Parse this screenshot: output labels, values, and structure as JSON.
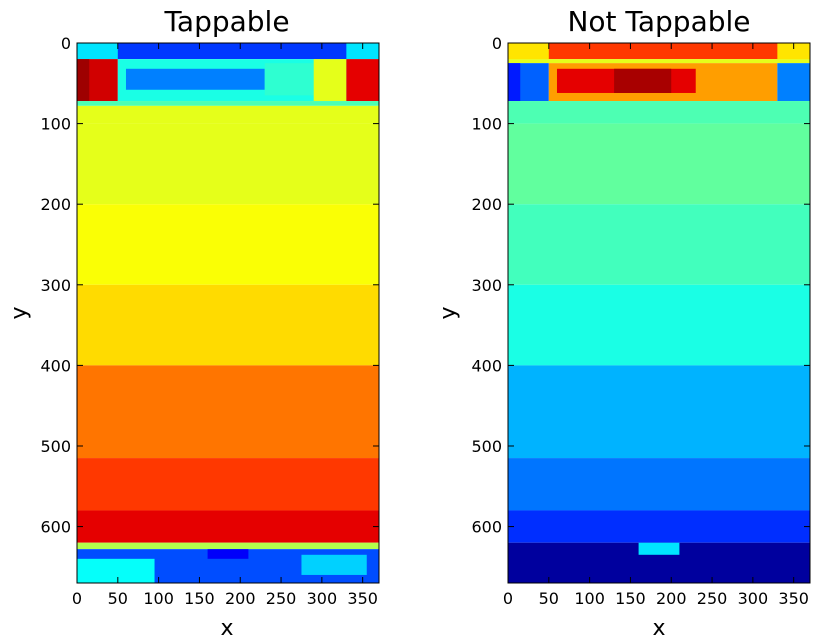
{
  "figure": {
    "panels": [
      {
        "title": "Tappable",
        "xlabel": "x",
        "ylabel": "y"
      },
      {
        "title": "Not Tappable",
        "xlabel": "x",
        "ylabel": "y"
      }
    ]
  },
  "chart_data": [
    {
      "type": "heatmap",
      "title": "Tappable",
      "xlabel": "x",
      "ylabel": "y",
      "xlim": [
        0,
        370
      ],
      "ylim": [
        670,
        0
      ],
      "xticks": [
        0,
        50,
        100,
        150,
        200,
        250,
        300,
        350
      ],
      "yticks": [
        0,
        100,
        200,
        300,
        400,
        500,
        600
      ],
      "colormap": "jet",
      "value_range": [
        0,
        1
      ],
      "regions": [
        {
          "x0": 0,
          "x1": 370,
          "y0": 0,
          "y1": 20,
          "value": 0.18
        },
        {
          "x0": 0,
          "x1": 50,
          "y0": 0,
          "y1": 20,
          "value": 0.35
        },
        {
          "x0": 330,
          "x1": 370,
          "y0": 0,
          "y1": 20,
          "value": 0.35
        },
        {
          "x0": 0,
          "x1": 50,
          "y0": 20,
          "y1": 72,
          "value": 0.92
        },
        {
          "x0": 0,
          "x1": 15,
          "y0": 20,
          "y1": 72,
          "value": 0.97
        },
        {
          "x0": 50,
          "x1": 330,
          "y0": 20,
          "y1": 72,
          "value": 0.4
        },
        {
          "x0": 60,
          "x1": 230,
          "y0": 32,
          "y1": 58,
          "value": 0.25
        },
        {
          "x0": 230,
          "x1": 290,
          "y0": 25,
          "y1": 65,
          "value": 0.42
        },
        {
          "x0": 290,
          "x1": 330,
          "y0": 20,
          "y1": 72,
          "value": 0.6
        },
        {
          "x0": 330,
          "x1": 370,
          "y0": 20,
          "y1": 72,
          "value": 0.9
        },
        {
          "x0": 0,
          "x1": 370,
          "y0": 72,
          "y1": 78,
          "value": 0.45
        },
        {
          "x0": 0,
          "x1": 370,
          "y0": 78,
          "y1": 100,
          "value": 0.6
        },
        {
          "x0": 0,
          "x1": 370,
          "y0": 100,
          "y1": 200,
          "value": 0.6
        },
        {
          "x0": 0,
          "x1": 370,
          "y0": 200,
          "y1": 300,
          "value": 0.62
        },
        {
          "x0": 0,
          "x1": 370,
          "y0": 300,
          "y1": 400,
          "value": 0.66
        },
        {
          "x0": 0,
          "x1": 370,
          "y0": 400,
          "y1": 515,
          "value": 0.76
        },
        {
          "x0": 0,
          "x1": 370,
          "y0": 515,
          "y1": 580,
          "value": 0.82
        },
        {
          "x0": 0,
          "x1": 370,
          "y0": 580,
          "y1": 620,
          "value": 0.9
        },
        {
          "x0": 0,
          "x1": 370,
          "y0": 620,
          "y1": 628,
          "value": 0.55
        },
        {
          "x0": 0,
          "x1": 370,
          "y0": 628,
          "y1": 670,
          "value": 0.2
        },
        {
          "x0": 0,
          "x1": 95,
          "y0": 640,
          "y1": 670,
          "value": 0.38
        },
        {
          "x0": 275,
          "x1": 355,
          "y0": 635,
          "y1": 660,
          "value": 0.33
        },
        {
          "x0": 160,
          "x1": 210,
          "y0": 628,
          "y1": 640,
          "value": 0.12
        }
      ]
    },
    {
      "type": "heatmap",
      "title": "Not Tappable",
      "xlabel": "x",
      "ylabel": "y",
      "xlim": [
        0,
        370
      ],
      "ylim": [
        670,
        0
      ],
      "xticks": [
        0,
        50,
        100,
        150,
        200,
        250,
        300,
        350
      ],
      "yticks": [
        0,
        100,
        200,
        300,
        400,
        500,
        600
      ],
      "colormap": "jet",
      "value_range": [
        0,
        1
      ],
      "regions": [
        {
          "x0": 0,
          "x1": 370,
          "y0": 0,
          "y1": 20,
          "value": 0.82
        },
        {
          "x0": 0,
          "x1": 50,
          "y0": 0,
          "y1": 20,
          "value": 0.65
        },
        {
          "x0": 330,
          "x1": 370,
          "y0": 0,
          "y1": 20,
          "value": 0.65
        },
        {
          "x0": 0,
          "x1": 370,
          "y0": 20,
          "y1": 25,
          "value": 0.6
        },
        {
          "x0": 0,
          "x1": 50,
          "y0": 25,
          "y1": 72,
          "value": 0.22
        },
        {
          "x0": 0,
          "x1": 15,
          "y0": 25,
          "y1": 72,
          "value": 0.15
        },
        {
          "x0": 50,
          "x1": 330,
          "y0": 25,
          "y1": 72,
          "value": 0.72
        },
        {
          "x0": 60,
          "x1": 230,
          "y0": 32,
          "y1": 62,
          "value": 0.9
        },
        {
          "x0": 130,
          "x1": 200,
          "y0": 32,
          "y1": 62,
          "value": 0.96
        },
        {
          "x0": 330,
          "x1": 370,
          "y0": 25,
          "y1": 72,
          "value": 0.25
        },
        {
          "x0": 0,
          "x1": 370,
          "y0": 72,
          "y1": 100,
          "value": 0.45
        },
        {
          "x0": 0,
          "x1": 370,
          "y0": 100,
          "y1": 200,
          "value": 0.47
        },
        {
          "x0": 0,
          "x1": 370,
          "y0": 200,
          "y1": 300,
          "value": 0.44
        },
        {
          "x0": 0,
          "x1": 370,
          "y0": 300,
          "y1": 400,
          "value": 0.4
        },
        {
          "x0": 0,
          "x1": 370,
          "y0": 400,
          "y1": 515,
          "value": 0.3
        },
        {
          "x0": 0,
          "x1": 370,
          "y0": 515,
          "y1": 580,
          "value": 0.24
        },
        {
          "x0": 0,
          "x1": 370,
          "y0": 580,
          "y1": 620,
          "value": 0.17
        },
        {
          "x0": 0,
          "x1": 370,
          "y0": 620,
          "y1": 670,
          "value": 0.03
        },
        {
          "x0": 160,
          "x1": 210,
          "y0": 620,
          "y1": 635,
          "value": 0.35
        }
      ]
    }
  ]
}
